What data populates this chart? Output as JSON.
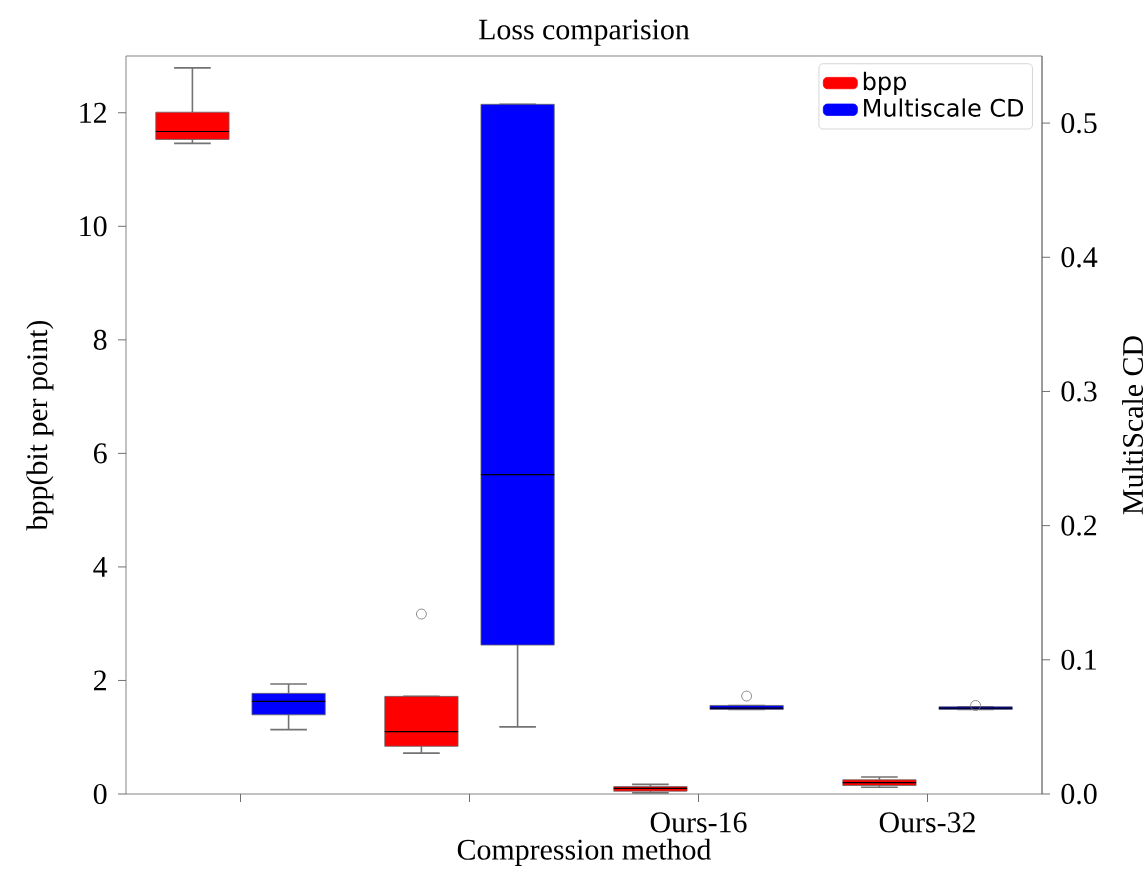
{
  "chart_data": {
    "type": "box",
    "title": "Loss comparision",
    "xlabel": "Compression method",
    "ylabel": "bpp(bit per point)",
    "y2label": "MultiScale CD",
    "categories": [
      null,
      null,
      "Ours-16",
      "Ours-32"
    ],
    "series": [
      {
        "name": "bpp",
        "color": "#ff0000",
        "boxes": [
          {
            "low": 11.46,
            "q1": 11.53,
            "median": 11.67,
            "q3": 12.01,
            "high": 12.79
          },
          {
            "low": 0.72,
            "q1": 0.84,
            "median": 1.1,
            "q3": 1.72,
            "high": 1.72,
            "outliers": [
              3.17
            ]
          },
          {
            "low": 0.02,
            "q1": 0.05,
            "median": 0.1,
            "q3": 0.13,
            "high": 0.17
          },
          {
            "low": 0.12,
            "q1": 0.15,
            "median": 0.2,
            "q3": 0.25,
            "high": 0.3
          }
        ]
      },
      {
        "name": "Multiscale CD",
        "color": "#0000ff",
        "axis": "y2",
        "boxes": [
          {
            "low": 0.048,
            "q1": 0.059,
            "median": 0.069,
            "q3": 0.075,
            "high": 0.082
          },
          {
            "low": 0.05,
            "q1": 0.111,
            "median": 0.238,
            "q3": 0.514,
            "high": 0.514
          },
          {
            "low": 0.063,
            "q1": 0.063,
            "median": 0.064,
            "q3": 0.066,
            "high": 0.066,
            "outliers": [
              0.073
            ]
          },
          {
            "low": 0.063,
            "q1": 0.063,
            "median": 0.064,
            "q3": 0.065,
            "high": 0.065,
            "outliers": [
              0.066
            ]
          }
        ]
      }
    ],
    "ylim": [
      0,
      13
    ],
    "yticks": [
      {
        "value": 0,
        "label": "0"
      },
      2,
      4,
      6,
      8,
      10,
      12
    ],
    "y2lim": [
      0,
      0.55
    ],
    "y2ticks": [
      {
        "value": 0,
        "label": "0.0"
      },
      0.1,
      0.2,
      0.3,
      0.4,
      0.5
    ],
    "legend": "top right",
    "grid": false
  }
}
